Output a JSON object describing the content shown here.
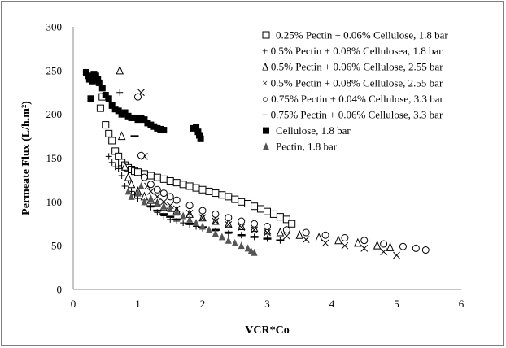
{
  "chart_data": {
    "type": "scatter",
    "title": "",
    "xlabel": "VCR*Co",
    "ylabel": "Permeate Flux (L/h.m²)",
    "xlim": [
      0,
      6
    ],
    "ylim": [
      0,
      300
    ],
    "xticks": [
      "0",
      "1",
      "2",
      "3",
      "4",
      "5",
      "6"
    ],
    "yticks": [
      "0",
      "50",
      "100",
      "150",
      "200",
      "250",
      "300"
    ],
    "grid": false,
    "legend_position": "top-right",
    "series": [
      {
        "name": "0.25% Pectin + 0.06% Cellulose, 1.8 bar",
        "marker": "square-open",
        "points": [
          [
            0.42,
            207
          ],
          [
            0.45,
            220
          ],
          [
            0.5,
            188
          ],
          [
            0.55,
            178
          ],
          [
            0.6,
            170
          ],
          [
            0.65,
            158
          ],
          [
            0.7,
            152
          ],
          [
            0.75,
            145
          ],
          [
            0.8,
            142
          ],
          [
            0.85,
            139
          ],
          [
            0.9,
            137
          ],
          [
            0.95,
            135
          ],
          [
            1.0,
            134
          ],
          [
            1.1,
            132
          ],
          [
            1.2,
            130
          ],
          [
            1.3,
            128
          ],
          [
            1.4,
            126
          ],
          [
            1.5,
            124
          ],
          [
            1.6,
            122
          ],
          [
            1.7,
            120
          ],
          [
            1.8,
            118
          ],
          [
            1.9,
            116
          ],
          [
            2.0,
            114
          ],
          [
            2.1,
            112
          ],
          [
            2.2,
            110
          ],
          [
            2.3,
            108
          ],
          [
            2.4,
            106
          ],
          [
            2.5,
            103
          ],
          [
            2.6,
            100
          ],
          [
            2.7,
            98
          ],
          [
            2.8,
            95
          ],
          [
            2.9,
            92
          ],
          [
            3.0,
            89
          ],
          [
            3.1,
            86
          ],
          [
            3.2,
            83
          ],
          [
            3.3,
            80
          ],
          [
            3.38,
            75
          ]
        ]
      },
      {
        "name": "+ 0.5% Pectin + 0.08% Cellulosea, 1.8 bar",
        "marker": "plus",
        "points": [
          [
            0.72,
            225
          ],
          [
            0.55,
            152
          ],
          [
            0.6,
            145
          ],
          [
            0.65,
            140
          ],
          [
            0.7,
            138
          ],
          [
            0.75,
            130
          ],
          [
            0.8,
            118
          ],
          [
            0.85,
            125
          ],
          [
            0.9,
            112
          ],
          [
            0.95,
            108
          ],
          [
            1.0,
            104
          ],
          [
            1.1,
            100
          ],
          [
            1.2,
            94
          ],
          [
            1.3,
            88
          ],
          [
            1.4,
            84
          ],
          [
            1.5,
            80
          ],
          [
            1.6,
            78
          ],
          [
            1.7,
            76
          ],
          [
            1.8,
            74
          ],
          [
            1.9,
            72
          ],
          [
            2.0,
            70
          ],
          [
            2.2,
            67
          ],
          [
            2.4,
            64
          ],
          [
            2.6,
            62
          ],
          [
            2.8,
            60
          ],
          [
            3.0,
            58
          ],
          [
            3.2,
            56
          ]
        ]
      },
      {
        "name": "Δ 0.5% Pectin + 0.06% Cellulose, 2.55 bar",
        "marker": "triangle-open",
        "points": [
          [
            0.72,
            250
          ],
          [
            0.75,
            175
          ],
          [
            0.8,
            140
          ],
          [
            0.85,
            128
          ],
          [
            0.9,
            120
          ],
          [
            1.0,
            112
          ],
          [
            1.1,
            106
          ],
          [
            1.2,
            102
          ],
          [
            1.3,
            98
          ],
          [
            1.4,
            94
          ],
          [
            1.6,
            90
          ],
          [
            1.8,
            86
          ],
          [
            2.0,
            82
          ],
          [
            2.2,
            78
          ],
          [
            2.4,
            75
          ],
          [
            2.6,
            72
          ],
          [
            2.8,
            70
          ],
          [
            3.0,
            67
          ],
          [
            3.2,
            65
          ],
          [
            3.5,
            62
          ],
          [
            3.8,
            59
          ],
          [
            4.1,
            56
          ],
          [
            4.4,
            53
          ],
          [
            4.7,
            50
          ],
          [
            4.9,
            48
          ]
        ]
      },
      {
        "name": "× 0.5% Pectin + 0.08% Cellulose, 2.55 bar",
        "marker": "cross",
        "points": [
          [
            1.05,
            225
          ],
          [
            1.1,
            152
          ],
          [
            1.15,
            118
          ],
          [
            1.2,
            112
          ],
          [
            1.3,
            106
          ],
          [
            1.4,
            100
          ],
          [
            1.5,
            96
          ],
          [
            1.6,
            92
          ],
          [
            1.8,
            87
          ],
          [
            2.0,
            82
          ],
          [
            2.2,
            78
          ],
          [
            2.4,
            74
          ],
          [
            2.6,
            71
          ],
          [
            2.8,
            68
          ],
          [
            3.0,
            65
          ],
          [
            3.3,
            61
          ],
          [
            3.6,
            57
          ],
          [
            3.9,
            53
          ],
          [
            4.2,
            50
          ],
          [
            4.5,
            47
          ],
          [
            4.8,
            43
          ],
          [
            5.0,
            39
          ]
        ]
      },
      {
        "name": "○ 0.75% Pectin + 0.04% Cellulose, 3.3 bar",
        "marker": "circle-open",
        "points": [
          [
            1.0,
            220
          ],
          [
            1.05,
            153
          ],
          [
            1.1,
            128
          ],
          [
            1.2,
            120
          ],
          [
            1.3,
            114
          ],
          [
            1.4,
            110
          ],
          [
            1.5,
            106
          ],
          [
            1.6,
            102
          ],
          [
            1.8,
            96
          ],
          [
            2.0,
            90
          ],
          [
            2.2,
            86
          ],
          [
            2.4,
            82
          ],
          [
            2.6,
            78
          ],
          [
            2.8,
            75
          ],
          [
            3.0,
            72
          ],
          [
            3.3,
            68
          ],
          [
            3.6,
            65
          ],
          [
            3.9,
            62
          ],
          [
            4.2,
            59
          ],
          [
            4.5,
            56
          ],
          [
            4.8,
            52
          ],
          [
            5.1,
            49
          ],
          [
            5.3,
            47
          ],
          [
            5.45,
            45
          ]
        ]
      },
      {
        "name": "− 0.75% Pectin + 0.06% Cellulose, 3.3 bar",
        "marker": "dash",
        "points": [
          [
            0.95,
            175
          ],
          [
            1.2,
            95
          ],
          [
            1.3,
            90
          ],
          [
            1.4,
            86
          ],
          [
            1.5,
            83
          ],
          [
            1.6,
            80
          ],
          [
            1.8,
            75
          ],
          [
            2.0,
            71
          ],
          [
            2.2,
            68
          ],
          [
            2.4,
            65
          ],
          [
            2.6,
            62
          ],
          [
            2.8,
            60
          ],
          [
            3.0,
            58
          ],
          [
            3.2,
            56
          ]
        ]
      },
      {
        "name": "Cellulose, 1.8 bar",
        "marker": "square-filled",
        "points": [
          [
            0.2,
            248
          ],
          [
            0.23,
            244
          ],
          [
            0.25,
            240
          ],
          [
            0.27,
            218
          ],
          [
            0.3,
            238
          ],
          [
            0.32,
            246
          ],
          [
            0.35,
            244
          ],
          [
            0.38,
            240
          ],
          [
            0.4,
            236
          ],
          [
            0.45,
            230
          ],
          [
            0.5,
            222
          ],
          [
            0.55,
            218
          ],
          [
            0.6,
            210
          ],
          [
            0.65,
            206
          ],
          [
            0.7,
            204
          ],
          [
            0.75,
            200
          ],
          [
            0.8,
            202
          ],
          [
            0.85,
            198
          ],
          [
            0.9,
            196
          ],
          [
            0.95,
            196
          ],
          [
            1.0,
            194
          ],
          [
            1.05,
            196
          ],
          [
            1.1,
            194
          ],
          [
            1.15,
            190
          ],
          [
            1.2,
            188
          ],
          [
            1.25,
            186
          ],
          [
            1.3,
            184
          ],
          [
            1.35,
            183
          ],
          [
            1.4,
            182
          ],
          [
            1.85,
            184
          ],
          [
            1.9,
            185
          ],
          [
            1.93,
            180
          ],
          [
            1.95,
            176
          ],
          [
            1.97,
            172
          ]
        ]
      },
      {
        "name": "Pectin, 1.8 bar",
        "marker": "triangle-filled",
        "points": [
          [
            0.85,
            112
          ],
          [
            0.9,
            106
          ],
          [
            1.0,
            110
          ],
          [
            1.05,
            118
          ],
          [
            1.1,
            100
          ],
          [
            1.2,
            104
          ],
          [
            1.3,
            98
          ],
          [
            1.4,
            95
          ],
          [
            1.5,
            92
          ],
          [
            1.6,
            88
          ],
          [
            1.7,
            84
          ],
          [
            1.8,
            80
          ],
          [
            1.9,
            76
          ],
          [
            2.0,
            72
          ],
          [
            2.1,
            68
          ],
          [
            2.2,
            64
          ],
          [
            2.3,
            60
          ],
          [
            2.4,
            56
          ],
          [
            2.5,
            53
          ],
          [
            2.6,
            50
          ],
          [
            2.7,
            47
          ],
          [
            2.75,
            44
          ],
          [
            2.8,
            42
          ]
        ]
      }
    ]
  }
}
